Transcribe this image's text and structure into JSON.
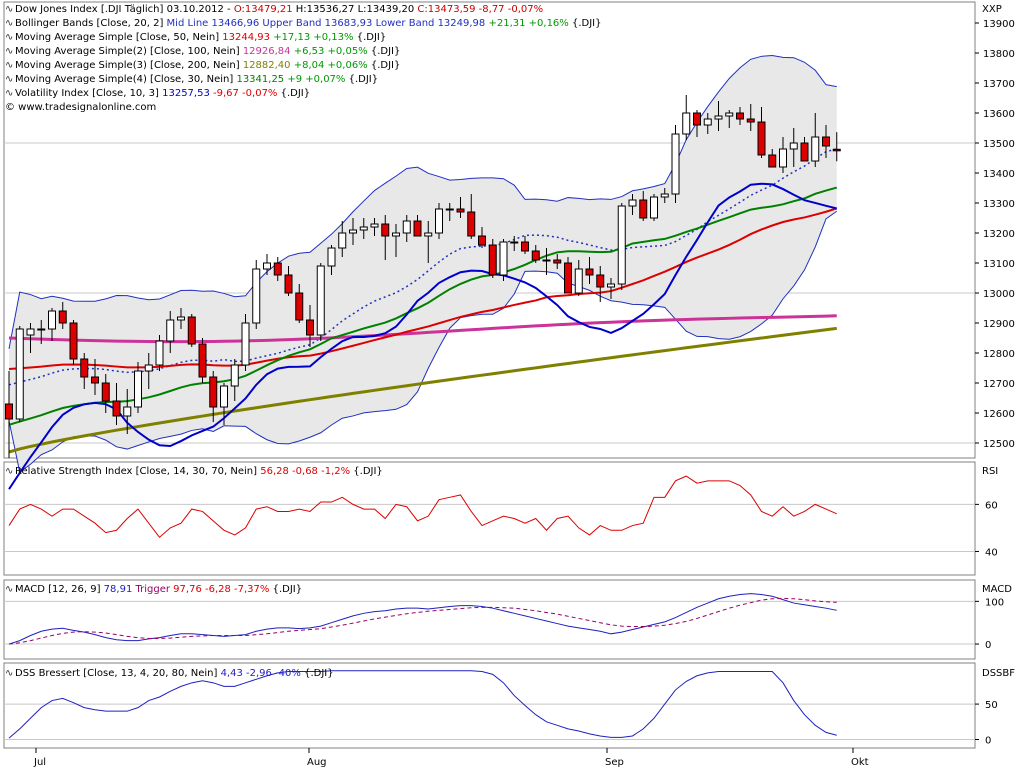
{
  "colors": {
    "candle_up": "#ffffff",
    "candle_down": "#dd0000",
    "bollinger": "#2030c0",
    "bb_fill": "#e8e8e8",
    "sma50": "#dd0000",
    "sma100": "#cc3399",
    "sma200": "#808000",
    "sma30": "#008000",
    "vola": "#0000cc",
    "rsi": "#dd0000",
    "macd": "#2020c0",
    "trigger": "#990066",
    "dss": "#2020c0",
    "grid": "#c8c8c8",
    "last_close_grey": "#b0b0b0"
  },
  "legend": {
    "dow": {
      "name": "Dow Jones Index [.DJI  Täglich] 03.10.2012 - ",
      "o": "O:13479,21",
      "h": "H:13536,27",
      "l": "L:13439,20",
      "c": "C:13473,59 -8,77 -0,07%"
    },
    "bb": {
      "name": "Bollinger Bands [Close, 20, 2] ",
      "vals": "Mid Line 13466,96 Upper Band 13683,93 Lower Band 13249,98",
      "chg": " +21,31 +0,16%",
      "tail": " {.DJI}"
    },
    "sma50": {
      "name": "Moving Average Simple [Close, 50, Nein] ",
      "val": "13244,93",
      "chg": " +17,13 +0,13%",
      "tail": " {.DJI}"
    },
    "sma100": {
      "name": "Moving Average Simple(2) [Close, 100, Nein] ",
      "val": "12926,84",
      "chg": " +6,53 +0,05%",
      "tail": " {.DJI}"
    },
    "sma200": {
      "name": "Moving Average Simple(3) [Close, 200, Nein] ",
      "val": "12882,40",
      "chg": " +8,04 +0,06%",
      "tail": " {.DJI}"
    },
    "sma30": {
      "name": "Moving Average Simple(4) [Close, 30, Nein] ",
      "val": "13341,25",
      "chg": " +9 +0,07%",
      "tail": " {.DJI}"
    },
    "vola": {
      "name": "Volatility Index [Close, 10, 3] ",
      "val": "13257,53",
      "chg": " -9,67 -0,07%",
      "tail": " {.DJI}"
    },
    "copyright": "© www.tradesignalonline.com",
    "rsi": {
      "name": "Relative Strength Index [Close, 14, 30, 70, Nein] ",
      "val": "56,28 -0,68 -1,2%",
      "tail": " {.DJI}"
    },
    "macd": {
      "name": "MACD [12, 26, 9] ",
      "val1": "78,91",
      "mid": " Trigger ",
      "val2": "97,76 -6,28 -7,37%",
      "tail": " {.DJI}"
    },
    "dss": {
      "name": "DSS Bressert [Close, 13, 4, 20, 80, Nein] ",
      "val": "4,43 -2,96 -40%",
      "tail": " {.DJI}"
    }
  },
  "axis": {
    "main_title": "XXP",
    "rsi_title": "RSI",
    "macd_title": "MACD",
    "dss_title": "DSSBF",
    "main_ticks": [
      "13900",
      "13800",
      "13700",
      "13600",
      "13500",
      "13400",
      "13300",
      "13200",
      "13100",
      "13000",
      "12900",
      "12800",
      "12700",
      "12600",
      "12500"
    ],
    "rsi_ticks": [
      "60",
      "40"
    ],
    "macd_ticks": [
      "100",
      "0"
    ],
    "dss_ticks": [
      "50",
      "0"
    ],
    "months": [
      "Jul",
      "Aug",
      "Sep",
      "Okt"
    ]
  },
  "chart_data": [
    {
      "type": "candlestick",
      "title": "Dow Jones Index [.DJI  Täglich] 03.10.2012",
      "ylim": [
        12450,
        13970
      ],
      "candles_close_series": {
        "name": "Dow Jones Index",
        "ohlc": [
          [
            12630,
            12740,
            12450,
            12580
          ],
          [
            12580,
            12890,
            12570,
            12880
          ],
          [
            12860,
            12900,
            12800,
            12880
          ],
          [
            12880,
            12910,
            12830,
            12880
          ],
          [
            12880,
            12950,
            12840,
            12940
          ],
          [
            12940,
            12970,
            12880,
            12900
          ],
          [
            12900,
            12910,
            12760,
            12780
          ],
          [
            12780,
            12800,
            12680,
            12720
          ],
          [
            12720,
            12780,
            12660,
            12700
          ],
          [
            12700,
            12730,
            12600,
            12640
          ],
          [
            12640,
            12700,
            12560,
            12590
          ],
          [
            12590,
            12680,
            12530,
            12620
          ],
          [
            12620,
            12770,
            12600,
            12740
          ],
          [
            12740,
            12800,
            12680,
            12760
          ],
          [
            12760,
            12860,
            12740,
            12840
          ],
          [
            12840,
            12940,
            12800,
            12910
          ],
          [
            12910,
            12950,
            12880,
            12920
          ],
          [
            12920,
            12930,
            12820,
            12830
          ],
          [
            12830,
            12850,
            12700,
            12720
          ],
          [
            12720,
            12740,
            12570,
            12620
          ],
          [
            12620,
            12700,
            12560,
            12690
          ],
          [
            12690,
            12780,
            12640,
            12760
          ],
          [
            12760,
            12930,
            12740,
            12900
          ],
          [
            12900,
            13110,
            12880,
            13080
          ],
          [
            13080,
            13130,
            13060,
            13100
          ],
          [
            13100,
            13120,
            13040,
            13060
          ],
          [
            13060,
            13090,
            12990,
            13000
          ],
          [
            13000,
            13030,
            12900,
            12910
          ],
          [
            12910,
            12960,
            12820,
            12860
          ],
          [
            12860,
            13100,
            12840,
            13090
          ],
          [
            13090,
            13160,
            13060,
            13150
          ],
          [
            13150,
            13240,
            13120,
            13200
          ],
          [
            13200,
            13250,
            13160,
            13210
          ],
          [
            13210,
            13250,
            13180,
            13220
          ],
          [
            13220,
            13250,
            13190,
            13230
          ],
          [
            13230,
            13260,
            13110,
            13190
          ],
          [
            13190,
            13230,
            13120,
            13200
          ],
          [
            13200,
            13260,
            13170,
            13240
          ],
          [
            13240,
            13260,
            13190,
            13190
          ],
          [
            13190,
            13240,
            13100,
            13200
          ],
          [
            13200,
            13300,
            13180,
            13280
          ],
          [
            13280,
            13300,
            13240,
            13280
          ],
          [
            13280,
            13320,
            13250,
            13270
          ],
          [
            13270,
            13330,
            13180,
            13190
          ],
          [
            13190,
            13220,
            13150,
            13160
          ],
          [
            13160,
            13180,
            13050,
            13060
          ],
          [
            13060,
            13180,
            13040,
            13170
          ],
          [
            13170,
            13190,
            13140,
            13170
          ],
          [
            13170,
            13190,
            13130,
            13140
          ],
          [
            13140,
            13160,
            13100,
            13110
          ],
          [
            13110,
            13150,
            13060,
            13110
          ],
          [
            13110,
            13130,
            13080,
            13100
          ],
          [
            13100,
            13120,
            13000,
            13000
          ],
          [
            13000,
            13110,
            12990,
            13080
          ],
          [
            13080,
            13120,
            13030,
            13060
          ],
          [
            13060,
            13090,
            12970,
            13020
          ],
          [
            13020,
            13050,
            12980,
            13030
          ],
          [
            13030,
            13300,
            13010,
            13290
          ],
          [
            13290,
            13330,
            13260,
            13310
          ],
          [
            13310,
            13340,
            13240,
            13250
          ],
          [
            13250,
            13330,
            13240,
            13320
          ],
          [
            13320,
            13350,
            13300,
            13330
          ],
          [
            13330,
            13560,
            13300,
            13530
          ],
          [
            13530,
            13660,
            13510,
            13600
          ],
          [
            13600,
            13610,
            13520,
            13560
          ],
          [
            13560,
            13600,
            13530,
            13580
          ],
          [
            13580,
            13640,
            13540,
            13590
          ],
          [
            13590,
            13610,
            13550,
            13600
          ],
          [
            13600,
            13620,
            13560,
            13580
          ],
          [
            13580,
            13630,
            13540,
            13570
          ],
          [
            13570,
            13620,
            13450,
            13460
          ],
          [
            13460,
            13480,
            13420,
            13420
          ],
          [
            13420,
            13520,
            13400,
            13480
          ],
          [
            13480,
            13550,
            13420,
            13500
          ],
          [
            13500,
            13520,
            13440,
            13440
          ],
          [
            13440,
            13600,
            13420,
            13520
          ],
          [
            13520,
            13560,
            13450,
            13490
          ],
          [
            13479,
            13536,
            13439,
            13474
          ]
        ]
      }
    },
    {
      "type": "line",
      "title": "Relative Strength Index [Close, 14, 30, 70, Nein]",
      "ylim": [
        30,
        78
      ],
      "series": [
        {
          "name": "RSI",
          "values": [
            51,
            58,
            60,
            58,
            55,
            58,
            58,
            55,
            52,
            48,
            49,
            54,
            58,
            52,
            46,
            50,
            52,
            58,
            57,
            53,
            49,
            47,
            50,
            58,
            59,
            57,
            57,
            58,
            57,
            61,
            61,
            63,
            60,
            58,
            58,
            54,
            60,
            59,
            53,
            55,
            62,
            63,
            64,
            57,
            51,
            53,
            55,
            54,
            52,
            54,
            49,
            54,
            55,
            50,
            47,
            51,
            49,
            49,
            51,
            52,
            63,
            63,
            70,
            72,
            69,
            70,
            70,
            70,
            68,
            64,
            57,
            55,
            59,
            55,
            57,
            60,
            58,
            56
          ]
        }
      ]
    },
    {
      "type": "line",
      "title": "MACD [12, 26, 9]",
      "ylim": [
        -35,
        150
      ],
      "series": [
        {
          "name": "MACD",
          "values": [
            0,
            8,
            20,
            30,
            35,
            37,
            32,
            28,
            22,
            15,
            10,
            8,
            8,
            12,
            15,
            20,
            24,
            24,
            22,
            20,
            18,
            20,
            22,
            30,
            35,
            38,
            38,
            36,
            38,
            42,
            50,
            58,
            66,
            72,
            76,
            78,
            82,
            84,
            84,
            82,
            85,
            88,
            90,
            90,
            88,
            84,
            78,
            72,
            66,
            60,
            54,
            48,
            42,
            38,
            34,
            30,
            24,
            28,
            34,
            40,
            46,
            52,
            62,
            74,
            86,
            96,
            106,
            112,
            116,
            118,
            116,
            112,
            104,
            96,
            92,
            88,
            84,
            79
          ]
        },
        {
          "name": "Trigger",
          "values": [
            0,
            3,
            8,
            14,
            20,
            25,
            28,
            29,
            28,
            26,
            22,
            18,
            15,
            13,
            13,
            14,
            16,
            18,
            19,
            20,
            20,
            20,
            20,
            22,
            24,
            27,
            30,
            32,
            34,
            36,
            40,
            44,
            49,
            54,
            59,
            63,
            67,
            71,
            74,
            77,
            79,
            81,
            83,
            85,
            86,
            86,
            85,
            84,
            81,
            78,
            74,
            70,
            65,
            60,
            55,
            50,
            45,
            42,
            41,
            41,
            42,
            44,
            48,
            53,
            60,
            68,
            76,
            84,
            91,
            97,
            103,
            106,
            107,
            106,
            104,
            101,
            99,
            98
          ]
        }
      ]
    },
    {
      "type": "line",
      "title": "DSS Bressert [Close, 13, 4, 20, 80, Nein]",
      "ylim": [
        -12,
        108
      ],
      "series": [
        {
          "name": "DSS",
          "values": [
            2,
            15,
            30,
            45,
            55,
            58,
            52,
            45,
            42,
            40,
            40,
            40,
            45,
            55,
            60,
            68,
            75,
            80,
            83,
            80,
            75,
            75,
            80,
            85,
            90,
            94,
            96,
            96,
            96,
            96,
            97,
            97,
            97,
            97,
            97,
            97,
            97,
            97,
            97,
            97,
            97,
            97,
            97,
            97,
            96,
            92,
            80,
            62,
            48,
            35,
            25,
            20,
            15,
            12,
            8,
            5,
            3,
            3,
            5,
            15,
            30,
            50,
            70,
            82,
            90,
            94,
            96,
            96,
            96,
            96,
            96,
            96,
            80,
            55,
            35,
            20,
            10,
            6
          ]
        }
      ]
    }
  ]
}
